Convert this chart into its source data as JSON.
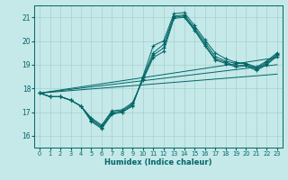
{
  "xlabel": "Humidex (Indice chaleur)",
  "xlim": [
    -0.5,
    23.5
  ],
  "ylim": [
    15.5,
    21.5
  ],
  "yticks": [
    16,
    17,
    18,
    19,
    20,
    21
  ],
  "xticks": [
    0,
    1,
    2,
    3,
    4,
    5,
    6,
    7,
    8,
    9,
    10,
    11,
    12,
    13,
    14,
    15,
    16,
    17,
    18,
    19,
    20,
    21,
    22,
    23
  ],
  "background_color": "#c5e8e8",
  "line_color": "#006666",
  "grid_color": "#a8d0d0",
  "lines": [
    [
      17.8,
      17.65,
      17.65,
      17.5,
      17.25,
      16.6,
      16.3,
      16.9,
      17.0,
      17.25,
      18.5,
      19.8,
      20.0,
      21.15,
      21.2,
      20.65,
      20.05,
      19.5,
      19.25,
      19.1,
      19.05,
      18.9,
      19.15,
      19.5
    ],
    [
      17.8,
      17.65,
      17.65,
      17.5,
      17.25,
      16.65,
      16.35,
      16.95,
      17.0,
      17.3,
      18.45,
      19.5,
      19.85,
      21.05,
      21.1,
      20.55,
      19.95,
      19.35,
      19.15,
      19.05,
      19.05,
      18.85,
      19.1,
      19.45
    ],
    [
      17.8,
      17.65,
      17.65,
      17.5,
      17.25,
      16.7,
      16.4,
      17.0,
      17.05,
      17.35,
      18.4,
      19.4,
      19.7,
      21.0,
      21.05,
      20.5,
      19.85,
      19.25,
      19.1,
      18.95,
      19.0,
      18.8,
      19.05,
      19.4
    ],
    [
      17.8,
      17.65,
      17.65,
      17.5,
      17.25,
      16.75,
      16.45,
      17.05,
      17.1,
      17.4,
      18.35,
      19.3,
      19.55,
      20.95,
      21.0,
      20.45,
      19.8,
      19.2,
      19.05,
      18.9,
      18.95,
      18.75,
      19.0,
      19.35
    ]
  ],
  "straight_lines": [
    [
      [
        0,
        23
      ],
      [
        17.8,
        18.6
      ]
    ],
    [
      [
        0,
        23
      ],
      [
        17.8,
        19.0
      ]
    ],
    [
      [
        0,
        23
      ],
      [
        17.8,
        19.3
      ]
    ]
  ]
}
